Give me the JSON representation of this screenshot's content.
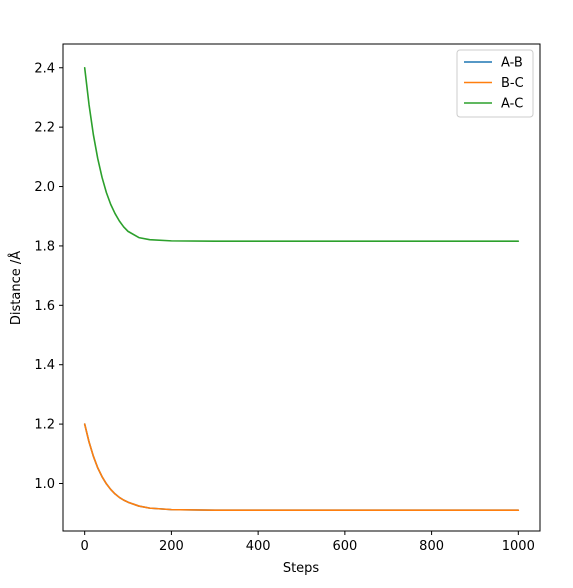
{
  "chart_data": {
    "type": "line",
    "title": "",
    "xlabel": "Steps",
    "ylabel": "Distance /Å",
    "xlim": [
      -50,
      1050
    ],
    "ylim": [
      0.84,
      2.48
    ],
    "x_ticks": [
      0,
      200,
      400,
      600,
      800,
      1000
    ],
    "x_tick_labels": [
      "0",
      "200",
      "400",
      "600",
      "800",
      "1000"
    ],
    "y_ticks": [
      1.0,
      1.2,
      1.4,
      1.6,
      1.8,
      2.0,
      2.2,
      2.4
    ],
    "y_tick_labels": [
      "1.0",
      "1.2",
      "1.4",
      "1.6",
      "1.8",
      "2.0",
      "2.2",
      "2.4"
    ],
    "grid": false,
    "legend_position": "top-right",
    "x": [
      0,
      10,
      20,
      30,
      40,
      50,
      60,
      70,
      80,
      90,
      100,
      125,
      150,
      200,
      300,
      400,
      500,
      600,
      700,
      800,
      900,
      1000
    ],
    "series": [
      {
        "name": "A-B",
        "color": "#1f77b4",
        "values": [
          1.2,
          1.14,
          1.092,
          1.053,
          1.023,
          0.999,
          0.98,
          0.965,
          0.953,
          0.944,
          0.937,
          0.924,
          0.917,
          0.912,
          0.91,
          0.91,
          0.91,
          0.91,
          0.91,
          0.91,
          0.91,
          0.91
        ]
      },
      {
        "name": "B-C",
        "color": "#ff7f0e",
        "values": [
          1.2,
          1.14,
          1.092,
          1.053,
          1.023,
          0.999,
          0.98,
          0.965,
          0.953,
          0.944,
          0.937,
          0.924,
          0.917,
          0.912,
          0.91,
          0.91,
          0.91,
          0.91,
          0.91,
          0.91,
          0.91,
          0.91
        ]
      },
      {
        "name": "A-C",
        "color": "#2ca02c",
        "values": [
          2.4,
          2.276,
          2.175,
          2.095,
          2.031,
          1.98,
          1.94,
          1.909,
          1.884,
          1.864,
          1.849,
          1.828,
          1.821,
          1.817,
          1.816,
          1.816,
          1.816,
          1.816,
          1.816,
          1.816,
          1.816,
          1.816
        ]
      }
    ]
  }
}
